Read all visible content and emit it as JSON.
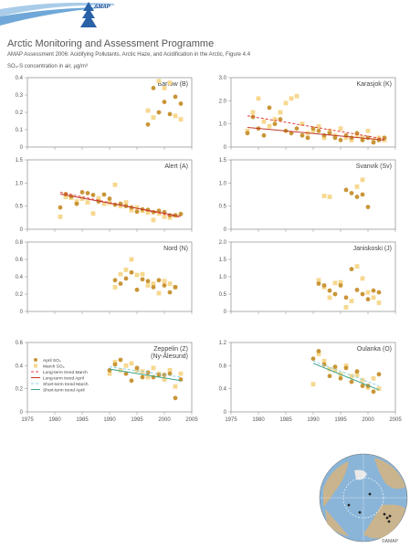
{
  "header": {
    "logo_text": "AMAP",
    "title": "Arctic Monitoring and Assessment Programme",
    "subtitle": "AMAP Assessment 2006: Acidifying Pollutants, Arctic Haze, and Acidification in the Arctic, Figure 4.4",
    "y_axis_label": "SO₄-S concentration in air, µg/m³"
  },
  "map": {
    "credit": "©AMAP"
  },
  "colors": {
    "april": "#c99536",
    "march": "#f6d88f",
    "long_march": "#e04040",
    "long_april": "#c0392b",
    "short_march": "#8fd0e8",
    "short_april": "#3aa58c"
  },
  "legend": {
    "april": "April SO₄",
    "march": "March SO₄",
    "long_march": "Long-term trend March",
    "long_april": "Long-term trend April",
    "short_march": "Short-term trend March",
    "short_april": "Short-term trend April"
  },
  "chart_data": [
    {
      "type": "scatter",
      "title": "Barrow (B)",
      "xlim": [
        1975,
        2005
      ],
      "ylim": [
        0,
        0.4
      ],
      "yticks": [
        0,
        0.1,
        0.2,
        0.3,
        0.4
      ],
      "yticklabels": [
        "0",
        "0.1",
        "0.2",
        "0.3",
        "0.4"
      ],
      "xticks": [
        1975,
        1980,
        1985,
        1990,
        1995,
        2000,
        2005
      ],
      "xticklabels": [],
      "series": [
        {
          "name": "April SO₄",
          "x": [
            1997,
            1998,
            1999,
            2000,
            2001,
            2002,
            2003
          ],
          "y": [
            0.13,
            0.34,
            0.2,
            0.26,
            0.19,
            0.29,
            0.25
          ]
        },
        {
          "name": "March SO₄",
          "x": [
            1997,
            1998,
            1999,
            2000,
            2001,
            2002,
            2003
          ],
          "y": [
            0.21,
            0.17,
            0.38,
            0.34,
            0.37,
            0.18,
            0.16
          ]
        }
      ],
      "trends": []
    },
    {
      "type": "scatter",
      "title": "Karasjok (K)",
      "xlim": [
        1975,
        2005
      ],
      "ylim": [
        0,
        3.0
      ],
      "yticks": [
        0,
        1.0,
        2.0,
        3.0
      ],
      "yticklabels": [
        "0",
        "1.0",
        "2.0",
        "3.0"
      ],
      "xticks": [
        1975,
        1980,
        1985,
        1990,
        1995,
        2000,
        2005
      ],
      "xticklabels": [],
      "series": [
        {
          "name": "April SO₄",
          "x": [
            1978,
            1979,
            1980,
            1981,
            1982,
            1983,
            1984,
            1985,
            1986,
            1987,
            1988,
            1989,
            1990,
            1991,
            1992,
            1993,
            1994,
            1995,
            1996,
            1997,
            1998,
            1999,
            2000,
            2001,
            2002,
            2003
          ],
          "y": [
            0.6,
            1.3,
            0.8,
            0.5,
            1.7,
            1.0,
            1.2,
            0.7,
            0.6,
            0.8,
            0.5,
            0.4,
            0.8,
            0.7,
            0.5,
            0.6,
            0.4,
            0.3,
            0.5,
            0.4,
            0.6,
            0.3,
            0.4,
            0.2,
            0.3,
            0.4
          ]
        },
        {
          "name": "March SO₄",
          "x": [
            1978,
            1979,
            1980,
            1981,
            1982,
            1983,
            1984,
            1985,
            1986,
            1987,
            1988,
            1989,
            1990,
            1991,
            1992,
            1993,
            1994,
            1995,
            1996,
            1997,
            1998,
            1999,
            2000,
            2001,
            2002,
            2003
          ],
          "y": [
            0.7,
            1.5,
            2.1,
            1.1,
            0.9,
            1.2,
            1.5,
            1.9,
            2.1,
            2.2,
            1.0,
            0.6,
            0.7,
            0.9,
            0.4,
            0.7,
            0.5,
            0.8,
            0.4,
            0.3,
            0.5,
            0.4,
            0.7,
            0.3,
            0.4,
            0.3
          ]
        }
      ],
      "trends": [
        {
          "kind": "long_march",
          "x": [
            1978,
            2003
          ],
          "y": [
            1.35,
            0.35
          ]
        },
        {
          "kind": "long_april",
          "x": [
            1978,
            2003
          ],
          "y": [
            0.85,
            0.3
          ]
        }
      ]
    },
    {
      "type": "scatter",
      "title": "Alert (A)",
      "xlim": [
        1975,
        2005
      ],
      "ylim": [
        0,
        1.5
      ],
      "yticks": [
        0,
        0.5,
        1.0,
        1.5
      ],
      "yticklabels": [
        "0",
        "0.5",
        "1.0",
        "1.5"
      ],
      "xticks": [
        1975,
        1980,
        1985,
        1990,
        1995,
        2000,
        2005
      ],
      "xticklabels": [],
      "series": [
        {
          "name": "April SO₄",
          "x": [
            1981,
            1982,
            1983,
            1984,
            1985,
            1986,
            1987,
            1988,
            1989,
            1990,
            1991,
            1992,
            1993,
            1994,
            1995,
            1996,
            1997,
            1998,
            1999,
            2000,
            2001,
            2002,
            2003
          ],
          "y": [
            0.47,
            0.76,
            0.71,
            0.55,
            0.8,
            0.78,
            0.74,
            0.6,
            0.75,
            0.66,
            0.53,
            0.55,
            0.5,
            0.47,
            0.38,
            0.43,
            0.42,
            0.37,
            0.4,
            0.37,
            0.3,
            0.3,
            0.33
          ]
        },
        {
          "name": "March SO₄",
          "x": [
            1981,
            1982,
            1983,
            1984,
            1985,
            1986,
            1987,
            1988,
            1989,
            1990,
            1991,
            1992,
            1993,
            1994,
            1995,
            1996,
            1997,
            1998,
            1999,
            2000,
            2001,
            2002
          ],
          "y": [
            0.27,
            0.7,
            0.68,
            0.6,
            0.66,
            0.58,
            0.34,
            0.67,
            0.55,
            0.57,
            0.96,
            0.5,
            0.58,
            0.41,
            0.47,
            0.4,
            0.36,
            0.2,
            0.34,
            0.27,
            0.25,
            0.3
          ]
        }
      ],
      "trends": [
        {
          "kind": "long_march",
          "x": [
            1981,
            2003
          ],
          "y": [
            0.8,
            0.25
          ]
        },
        {
          "kind": "long_april",
          "x": [
            1981,
            2003
          ],
          "y": [
            0.76,
            0.28
          ]
        }
      ]
    },
    {
      "type": "scatter",
      "title": "Svanvik (Sv)",
      "xlim": [
        1975,
        2005
      ],
      "ylim": [
        0,
        1.5
      ],
      "yticks": [
        0,
        0.5,
        1.0,
        1.5
      ],
      "yticklabels": [
        "0",
        "0.5",
        "1.0",
        "1.5"
      ],
      "xticks": [
        1975,
        1980,
        1985,
        1990,
        1995,
        2000,
        2005
      ],
      "xticklabels": [],
      "series": [
        {
          "name": "April SO₄",
          "x": [
            1996,
            1997,
            1998,
            1999,
            2000
          ],
          "y": [
            0.85,
            0.78,
            0.7,
            0.75,
            0.48
          ]
        },
        {
          "name": "March SO₄",
          "x": [
            1992,
            1993,
            1998,
            1999
          ],
          "y": [
            0.72,
            0.7,
            0.92,
            1.07
          ]
        }
      ],
      "trends": []
    },
    {
      "type": "scatter",
      "title": "Nord (N)",
      "xlim": [
        1975,
        2005
      ],
      "ylim": [
        0,
        0.8
      ],
      "yticks": [
        0,
        0.2,
        0.4,
        0.6,
        0.8
      ],
      "yticklabels": [
        "0",
        "0.2",
        "0.4",
        "0.6",
        "0.8"
      ],
      "xticks": [
        1975,
        1980,
        1985,
        1990,
        1995,
        2000,
        2005
      ],
      "xticklabels": [],
      "series": [
        {
          "name": "April SO₄",
          "x": [
            1991,
            1992,
            1993,
            1994,
            1995,
            1996,
            1997,
            1998,
            1999,
            2000,
            2001,
            2002
          ],
          "y": [
            0.36,
            0.32,
            0.38,
            0.45,
            0.25,
            0.37,
            0.35,
            0.28,
            0.36,
            0.3,
            0.22,
            0.28
          ]
        },
        {
          "name": "March SO₄",
          "x": [
            1991,
            1992,
            1993,
            1994,
            1995,
            1996,
            1997,
            1998,
            1999,
            2000,
            2001,
            2002
          ],
          "y": [
            0.28,
            0.43,
            0.48,
            0.6,
            0.42,
            0.43,
            0.3,
            0.32,
            0.21,
            0.35,
            0.32,
            0.28
          ]
        }
      ],
      "trends": []
    },
    {
      "type": "scatter",
      "title": "Janiskoski (J)",
      "xlim": [
        1975,
        2005
      ],
      "ylim": [
        0,
        2.0
      ],
      "yticks": [
        0,
        0.5,
        1.0,
        1.5,
        2.0
      ],
      "yticklabels": [
        "0",
        "0.5",
        "1.0",
        "1.5",
        "2.0"
      ],
      "xticks": [
        1975,
        1980,
        1985,
        1990,
        1995,
        2000,
        2005
      ],
      "xticklabels": [],
      "series": [
        {
          "name": "April SO₄",
          "x": [
            1991,
            1992,
            1993,
            1994,
            1995,
            1996,
            1997,
            1998,
            1999,
            2000,
            2001,
            2002
          ],
          "y": [
            0.8,
            0.75,
            0.6,
            0.5,
            0.75,
            0.4,
            1.22,
            0.62,
            0.5,
            0.35,
            0.6,
            0.55
          ]
        },
        {
          "name": "March SO₄",
          "x": [
            1991,
            1992,
            1993,
            1994,
            1995,
            1996,
            1997,
            1998,
            1999,
            2000,
            2001,
            2002
          ],
          "y": [
            0.9,
            0.7,
            0.4,
            0.82,
            0.84,
            0.12,
            0.3,
            1.3,
            0.95,
            0.55,
            0.4,
            0.25
          ]
        }
      ],
      "trends": []
    },
    {
      "type": "scatter",
      "title": "Zeppelin (Z) (Ny-Ålesund)",
      "title_lines": [
        "Zeppelin (Z)",
        "(Ny-Ålesund)"
      ],
      "xlim": [
        1975,
        2005
      ],
      "ylim": [
        0,
        0.6
      ],
      "yticks": [
        0,
        0.2,
        0.4,
        0.6
      ],
      "yticklabels": [
        "0",
        "0.2",
        "0.4",
        "0.6"
      ],
      "xticks": [
        1975,
        1980,
        1985,
        1990,
        1995,
        2000,
        2005
      ],
      "xticklabels": [
        "1975",
        "1980",
        "1985",
        "1990",
        "1995",
        "2000",
        "2005"
      ],
      "legend": true,
      "series": [
        {
          "name": "April SO₄",
          "x": [
            1990,
            1991,
            1992,
            1993,
            1994,
            1995,
            1996,
            1997,
            1998,
            1999,
            2000,
            2001,
            2002,
            2003
          ],
          "y": [
            0.36,
            0.41,
            0.45,
            0.33,
            0.27,
            0.38,
            0.3,
            0.34,
            0.3,
            0.32,
            0.32,
            0.33,
            0.12,
            0.28
          ]
        },
        {
          "name": "March SO₄",
          "x": [
            1990,
            1991,
            1992,
            1993,
            1994,
            1995,
            1996,
            1997,
            1998,
            1999,
            2000,
            2001,
            2002,
            2003
          ],
          "y": [
            0.33,
            0.43,
            0.36,
            0.4,
            0.42,
            0.36,
            0.35,
            0.3,
            0.38,
            0.33,
            0.28,
            0.36,
            0.22,
            0.33
          ]
        }
      ],
      "trends": [
        {
          "kind": "short_march",
          "x": [
            1990,
            2003
          ],
          "y": [
            0.39,
            0.3
          ]
        },
        {
          "kind": "short_april",
          "x": [
            1990,
            2003
          ],
          "y": [
            0.37,
            0.27
          ]
        }
      ]
    },
    {
      "type": "scatter",
      "title": "Oulanka (O)",
      "xlim": [
        1975,
        2005
      ],
      "ylim": [
        0,
        1.2
      ],
      "yticks": [
        0,
        0.4,
        0.8,
        1.2
      ],
      "yticklabels": [
        "0",
        "0.4",
        "0.8",
        "1.2"
      ],
      "xticks": [
        1975,
        1980,
        1985,
        1990,
        1995,
        2000,
        2005
      ],
      "xticklabels": [
        "1975",
        "1980",
        "1985",
        "1990",
        "1995",
        "2000",
        "2005"
      ],
      "series": [
        {
          "name": "April SO₄",
          "x": [
            1990,
            1991,
            1992,
            1993,
            1994,
            1995,
            1996,
            1997,
            1998,
            1999,
            2000,
            2001,
            2002
          ],
          "y": [
            0.92,
            1.05,
            0.82,
            0.62,
            0.78,
            0.58,
            0.76,
            0.52,
            0.7,
            0.45,
            0.45,
            0.35,
            0.65
          ]
        },
        {
          "name": "March SO₄",
          "x": [
            1990,
            1991,
            1992,
            1993,
            1994,
            1995,
            1996,
            1997,
            1998,
            1999,
            2000,
            2001,
            2002
          ],
          "y": [
            0.48,
            1.0,
            0.88,
            0.74,
            0.72,
            0.65,
            0.8,
            0.62,
            0.64,
            0.55,
            0.42,
            0.58,
            0.4
          ]
        }
      ],
      "trends": [
        {
          "kind": "short_march",
          "x": [
            1990,
            2002
          ],
          "y": [
            0.88,
            0.45
          ]
        },
        {
          "kind": "short_april",
          "x": [
            1990,
            2002
          ],
          "y": [
            0.84,
            0.38
          ]
        }
      ]
    }
  ]
}
